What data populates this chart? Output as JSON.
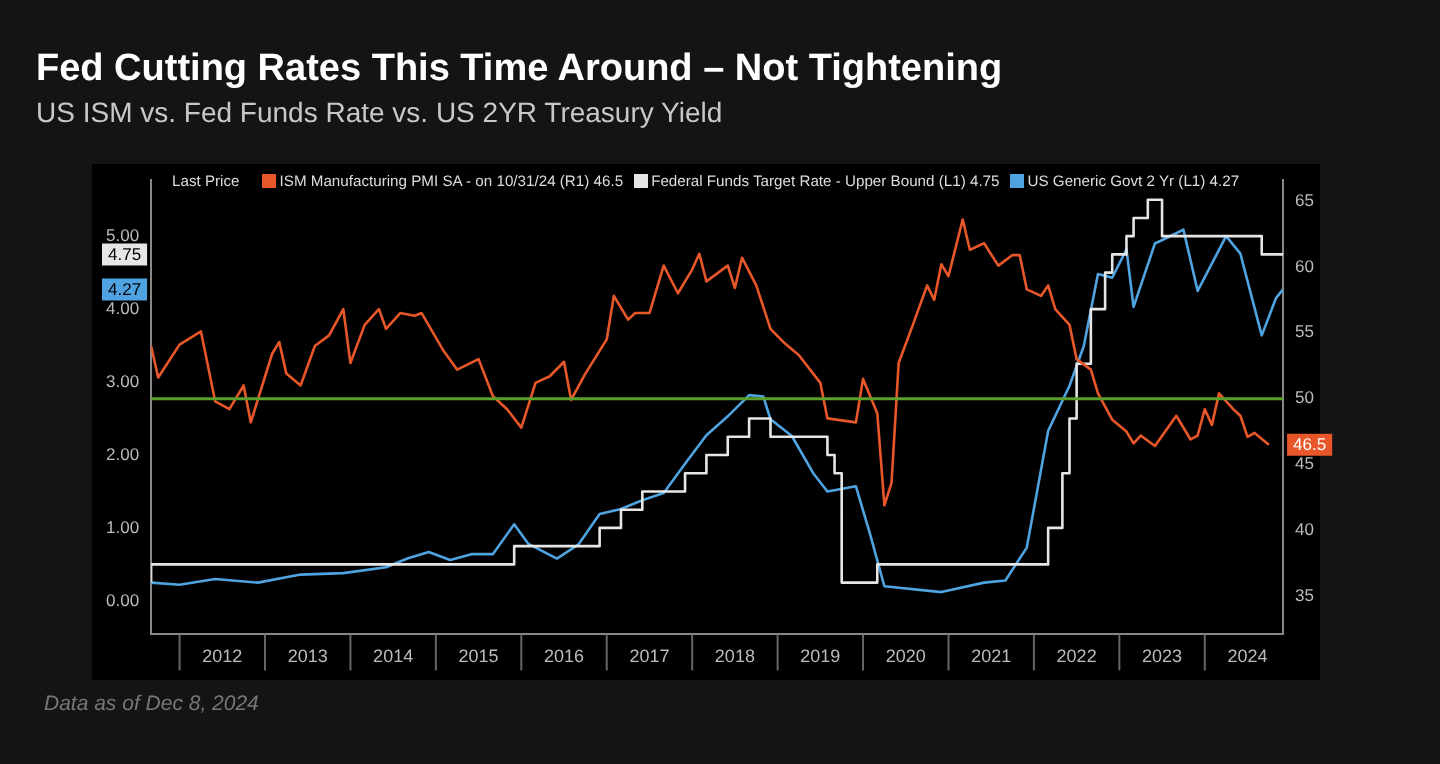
{
  "chart_data": {
    "type": "line",
    "title": "Fed Cutting Rates This Time Around – Not Tightening",
    "subtitle": "US ISM vs. Fed Funds Rate vs. US 2YR Treasury Yield",
    "legend_title": "Last Price",
    "legend": "top",
    "annotations": [
      "Data as of Dec 8, 2024",
      {
        "text": "4.75",
        "y": 4.75
      },
      {
        "text": "4.27",
        "y": 4.27
      }
    ],
    "series": [
      {
        "name": "ISM Manufacturing PMI SA -  on 10/31/24  (R1) 46.5",
        "axis": "y2",
        "color": "#e8572a",
        "x": [
          "2011-09",
          "2011-10",
          "2012-01",
          "2012-04",
          "2012-06",
          "2012-08",
          "2012-10",
          "2012-11",
          "2013-02",
          "2013-03",
          "2013-04",
          "2013-06",
          "2013-08",
          "2013-10",
          "2013-12",
          "2014-01",
          "2014-03",
          "2014-05",
          "2014-06",
          "2014-08",
          "2014-10",
          "2014-11",
          "2015-02",
          "2015-04",
          "2015-07",
          "2015-09",
          "2015-11",
          "2016-01",
          "2016-03",
          "2016-05",
          "2016-07",
          "2016-08",
          "2016-10",
          "2017-01",
          "2017-02",
          "2017-04",
          "2017-05",
          "2017-07",
          "2017-09",
          "2017-11",
          "2018-01",
          "2018-02",
          "2018-03",
          "2018-06",
          "2018-07",
          "2018-08",
          "2018-10",
          "2018-12",
          "2019-02",
          "2019-04",
          "2019-07",
          "2019-08",
          "2019-12",
          "2020-01",
          "2020-03",
          "2020-04",
          "2020-05",
          "2020-06",
          "2020-08",
          "2020-10",
          "2020-11",
          "2020-12",
          "2021-01",
          "2021-03",
          "2021-04",
          "2021-06",
          "2021-08",
          "2021-10",
          "2021-11",
          "2021-12",
          "2022-02",
          "2022-03",
          "2022-04",
          "2022-06",
          "2022-07",
          "2022-09",
          "2022-10",
          "2022-12",
          "2023-02",
          "2023-03",
          "2023-04",
          "2023-06",
          "2023-09",
          "2023-11",
          "2023-12",
          "2024-01",
          "2024-02",
          "2024-03",
          "2024-05",
          "2024-06",
          "2024-07",
          "2024-08",
          "2024-10"
        ],
        "values": [
          54.0,
          51.6,
          54.1,
          55.1,
          49.8,
          49.2,
          51.0,
          48.2,
          53.4,
          54.3,
          51.9,
          51.0,
          54.0,
          54.8,
          56.8,
          52.7,
          55.6,
          56.8,
          55.3,
          56.5,
          56.3,
          56.5,
          53.7,
          52.2,
          53.0,
          50.2,
          49.2,
          47.8,
          51.2,
          51.7,
          52.8,
          49.9,
          51.9,
          54.5,
          57.8,
          56.0,
          56.5,
          56.5,
          60.1,
          58.0,
          59.8,
          61.0,
          58.9,
          60.1,
          58.4,
          60.7,
          58.6,
          55.3,
          54.2,
          53.3,
          51.2,
          48.5,
          48.2,
          51.5,
          48.9,
          41.9,
          43.6,
          52.7,
          55.6,
          58.6,
          57.5,
          60.2,
          59.3,
          63.6,
          61.3,
          61.8,
          60.1,
          60.9,
          60.9,
          58.3,
          57.8,
          58.6,
          56.8,
          55.6,
          53.0,
          52.2,
          50.4,
          48.4,
          47.5,
          46.6,
          47.2,
          46.4,
          48.7,
          46.9,
          47.2,
          49.2,
          48.0,
          50.4,
          49.2,
          48.7,
          47.1,
          47.4,
          46.5
        ],
        "value_labels": [
          null,
          null,
          null,
          null,
          null,
          null,
          null,
          null,
          null,
          null,
          null,
          null,
          null,
          null,
          null,
          null,
          null,
          null,
          null,
          null,
          null,
          null,
          null,
          null,
          null,
          null,
          null,
          null,
          null,
          null,
          null,
          null,
          null,
          null,
          null,
          null,
          null,
          null,
          null,
          null,
          null,
          null,
          null,
          null,
          null,
          null,
          null,
          null,
          null,
          null,
          null,
          null,
          null,
          null,
          null,
          null,
          null,
          null,
          null,
          null,
          null,
          null,
          null,
          null,
          null,
          null,
          null,
          null,
          null,
          null,
          null,
          null,
          null,
          null,
          null,
          null,
          null,
          null,
          null,
          null,
          null,
          null,
          null,
          null,
          null,
          null,
          null,
          null,
          null,
          null,
          null,
          null,
          "46.5"
        ]
      },
      {
        "name": "Federal Funds Target Rate - Upper Bound  (L1) 4.75",
        "type": "step",
        "color": "#e6e6e6",
        "x": [
          "2011-09",
          "2015-12",
          "2016-12",
          "2017-03",
          "2017-06",
          "2017-12",
          "2018-03",
          "2018-06",
          "2018-09",
          "2018-12",
          "2019-08",
          "2019-09",
          "2019-10",
          "2020-03",
          "2022-03",
          "2022-05",
          "2022-06",
          "2022-07",
          "2022-09",
          "2022-11",
          "2022-12",
          "2023-02",
          "2023-03",
          "2023-05",
          "2023-07",
          "2024-09",
          "2024-11",
          "2024-12"
        ],
        "values": [
          0.25,
          0.5,
          0.75,
          1.0,
          1.25,
          1.5,
          1.75,
          2.0,
          2.25,
          2.5,
          2.25,
          2.0,
          1.75,
          0.25,
          0.5,
          1.0,
          1.75,
          2.5,
          3.25,
          4.0,
          4.5,
          4.75,
          5.0,
          5.25,
          5.5,
          5.0,
          4.75,
          4.75
        ],
        "value_labels": [
          null,
          null,
          null,
          null,
          null,
          null,
          null,
          null,
          null,
          null,
          null,
          null,
          null,
          null,
          null,
          null,
          null,
          null,
          null,
          null,
          null,
          null,
          null,
          null,
          null,
          null,
          null,
          null
        ]
      },
      {
        "name": "US Generic Govt 2 Yr  (L1) 4.27",
        "color": "#4fa3e0",
        "x": [
          "2011-09",
          "2012-01",
          "2012-06",
          "2012-12",
          "2013-06",
          "2013-12",
          "2014-06",
          "2014-09",
          "2014-12",
          "2015-03",
          "2015-06",
          "2015-09",
          "2015-12",
          "2016-02",
          "2016-06",
          "2016-09",
          "2016-12",
          "2017-03",
          "2017-06",
          "2017-09",
          "2017-12",
          "2018-03",
          "2018-06",
          "2018-09",
          "2018-11",
          "2018-12",
          "2019-03",
          "2019-06",
          "2019-08",
          "2019-12",
          "2020-02",
          "2020-04",
          "2020-12",
          "2021-06",
          "2021-09",
          "2021-12",
          "2022-03",
          "2022-06",
          "2022-08",
          "2022-10",
          "2022-12",
          "2023-02",
          "2023-03",
          "2023-06",
          "2023-09",
          "2023-10",
          "2023-12",
          "2024-04",
          "2024-06",
          "2024-09",
          "2024-11",
          "2024-12"
        ],
        "values": [
          0.25,
          0.22,
          0.3,
          0.25,
          0.36,
          0.38,
          0.46,
          0.58,
          0.67,
          0.56,
          0.64,
          0.64,
          1.05,
          0.78,
          0.58,
          0.77,
          1.19,
          1.26,
          1.38,
          1.48,
          1.88,
          2.27,
          2.53,
          2.82,
          2.8,
          2.49,
          2.26,
          1.75,
          1.5,
          1.57,
          0.91,
          0.2,
          0.12,
          0.25,
          0.28,
          0.73,
          2.33,
          2.95,
          3.49,
          4.48,
          4.43,
          4.82,
          4.03,
          4.9,
          5.04,
          5.09,
          4.25,
          5.0,
          4.76,
          3.64,
          4.15,
          4.27
        ],
        "value_labels": [
          null,
          null,
          null,
          null,
          null,
          null,
          null,
          null,
          null,
          null,
          null,
          null,
          null,
          null,
          null,
          null,
          null,
          null,
          null,
          null,
          null,
          null,
          null,
          null,
          null,
          null,
          null,
          null,
          null,
          null,
          null,
          null,
          null,
          null,
          null,
          null,
          null,
          null,
          null,
          null,
          null,
          null,
          null,
          null,
          null,
          null,
          null,
          null,
          null,
          null,
          null,
          null
        ]
      }
    ],
    "xlim": [
      "2011-09",
      "2024-12"
    ],
    "xticks": [
      {
        "value": "2012-07",
        "label": "2012"
      },
      {
        "value": "2013-07",
        "label": "2013"
      },
      {
        "value": "2014-07",
        "label": "2014"
      },
      {
        "value": "2015-07",
        "label": "2015"
      },
      {
        "value": "2016-07",
        "label": "2016"
      },
      {
        "value": "2017-07",
        "label": "2017"
      },
      {
        "value": "2018-07",
        "label": "2018"
      },
      {
        "value": "2019-07",
        "label": "2019"
      },
      {
        "value": "2020-07",
        "label": "2020"
      },
      {
        "value": "2021-07",
        "label": "2021"
      },
      {
        "value": "2022-07",
        "label": "2022"
      },
      {
        "value": "2023-07",
        "label": "2023"
      },
      {
        "value": "2024-07",
        "label": "2024"
      }
    ],
    "ylim": [
      -0.46,
      5.77
    ],
    "yticks": [
      {
        "value": 0,
        "label": "0.00"
      },
      {
        "value": 1,
        "label": "1.00"
      },
      {
        "value": 2,
        "label": "2.00"
      },
      {
        "value": 3,
        "label": "3.00"
      },
      {
        "value": 4,
        "label": "4.00"
      },
      {
        "value": 5,
        "label": "5.00"
      }
    ],
    "y2lim": [
      32.1,
      66.6
    ],
    "y2ticks": [
      35,
      40,
      45,
      50,
      55,
      60,
      65
    ],
    "ref_lines": [
      {
        "axis": "y2",
        "value": 50,
        "color": "#5aa02c"
      }
    ],
    "grid": false
  }
}
